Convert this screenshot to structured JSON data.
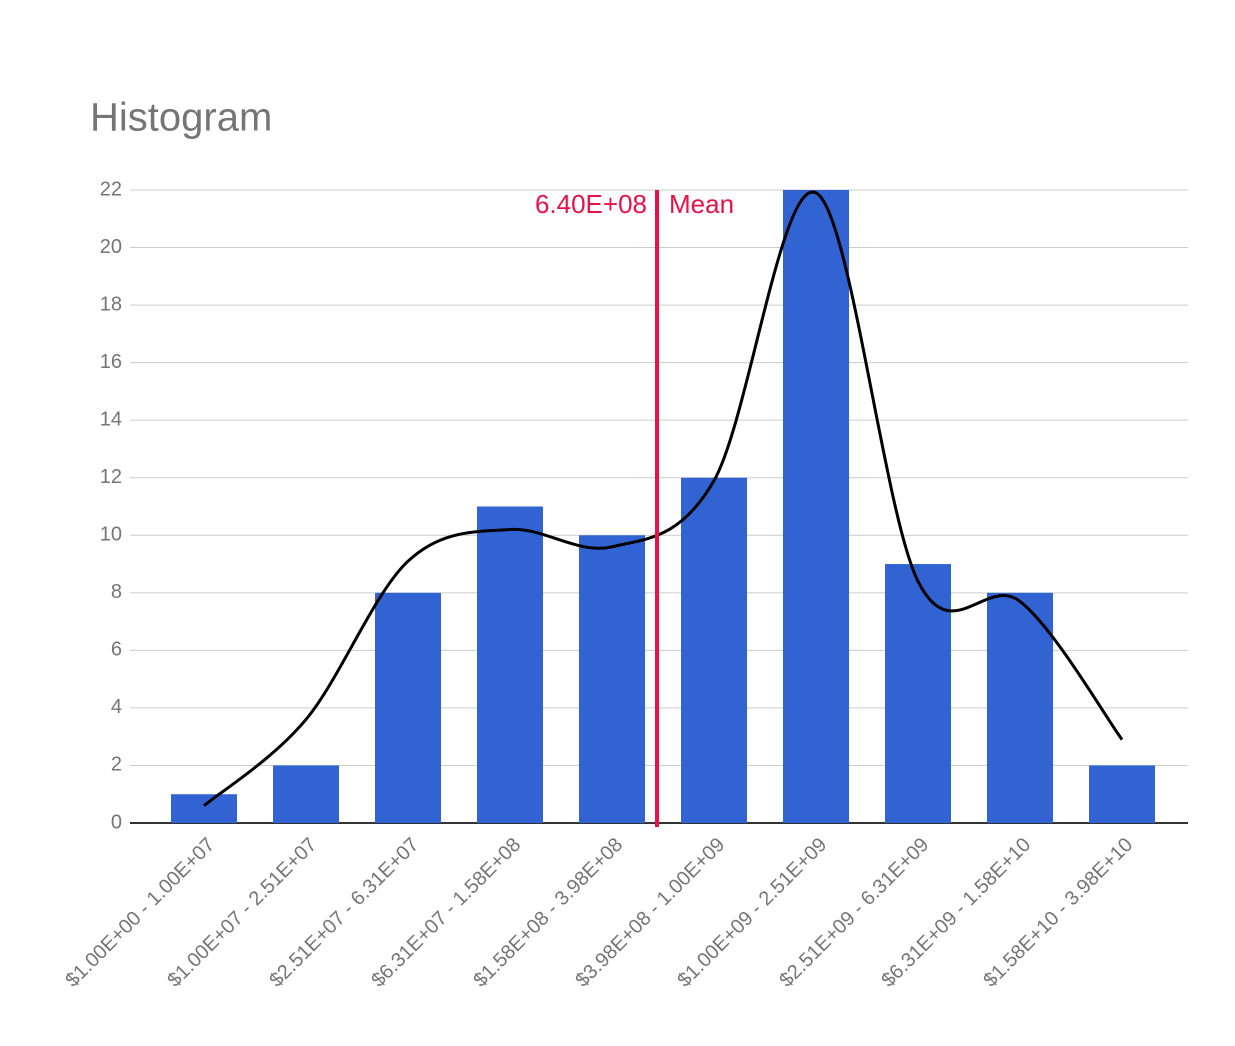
{
  "chart_data": {
    "type": "bar",
    "title": "Histogram",
    "categories": [
      "$1.00E+00 - 1.00E+07",
      "$1.00E+07 - 2.51E+07",
      "$2.51E+07 - 6.31E+07",
      "$6.31E+07 - 1.58E+08",
      "$1.58E+08 - 3.98E+08",
      "$3.98E+08 - 1.00E+09",
      "$1.00E+09 - 2.51E+09",
      "$2.51E+09 - 6.31E+09",
      "$6.31E+09 - 1.58E+10",
      "$1.58E+10 - 3.98E+10"
    ],
    "series": [
      {
        "type": "bar",
        "color": "#3164d2",
        "values": [
          1,
          2,
          8,
          11,
          10,
          12,
          22,
          9,
          8,
          2
        ]
      },
      {
        "type": "line",
        "color": "#000000",
        "values": [
          0.6,
          3.6,
          9.1,
          10.2,
          9.6,
          11.9,
          21.9,
          8.4,
          7.7,
          2.9
        ]
      }
    ],
    "mean": {
      "value": 640000000,
      "label": "6.40E+08",
      "name": "Mean",
      "color": "#e8114a"
    },
    "ylim": [
      0,
      22
    ],
    "yticks": [
      0,
      2,
      4,
      6,
      8,
      10,
      12,
      14,
      16,
      18,
      20,
      22
    ],
    "grid": true
  }
}
